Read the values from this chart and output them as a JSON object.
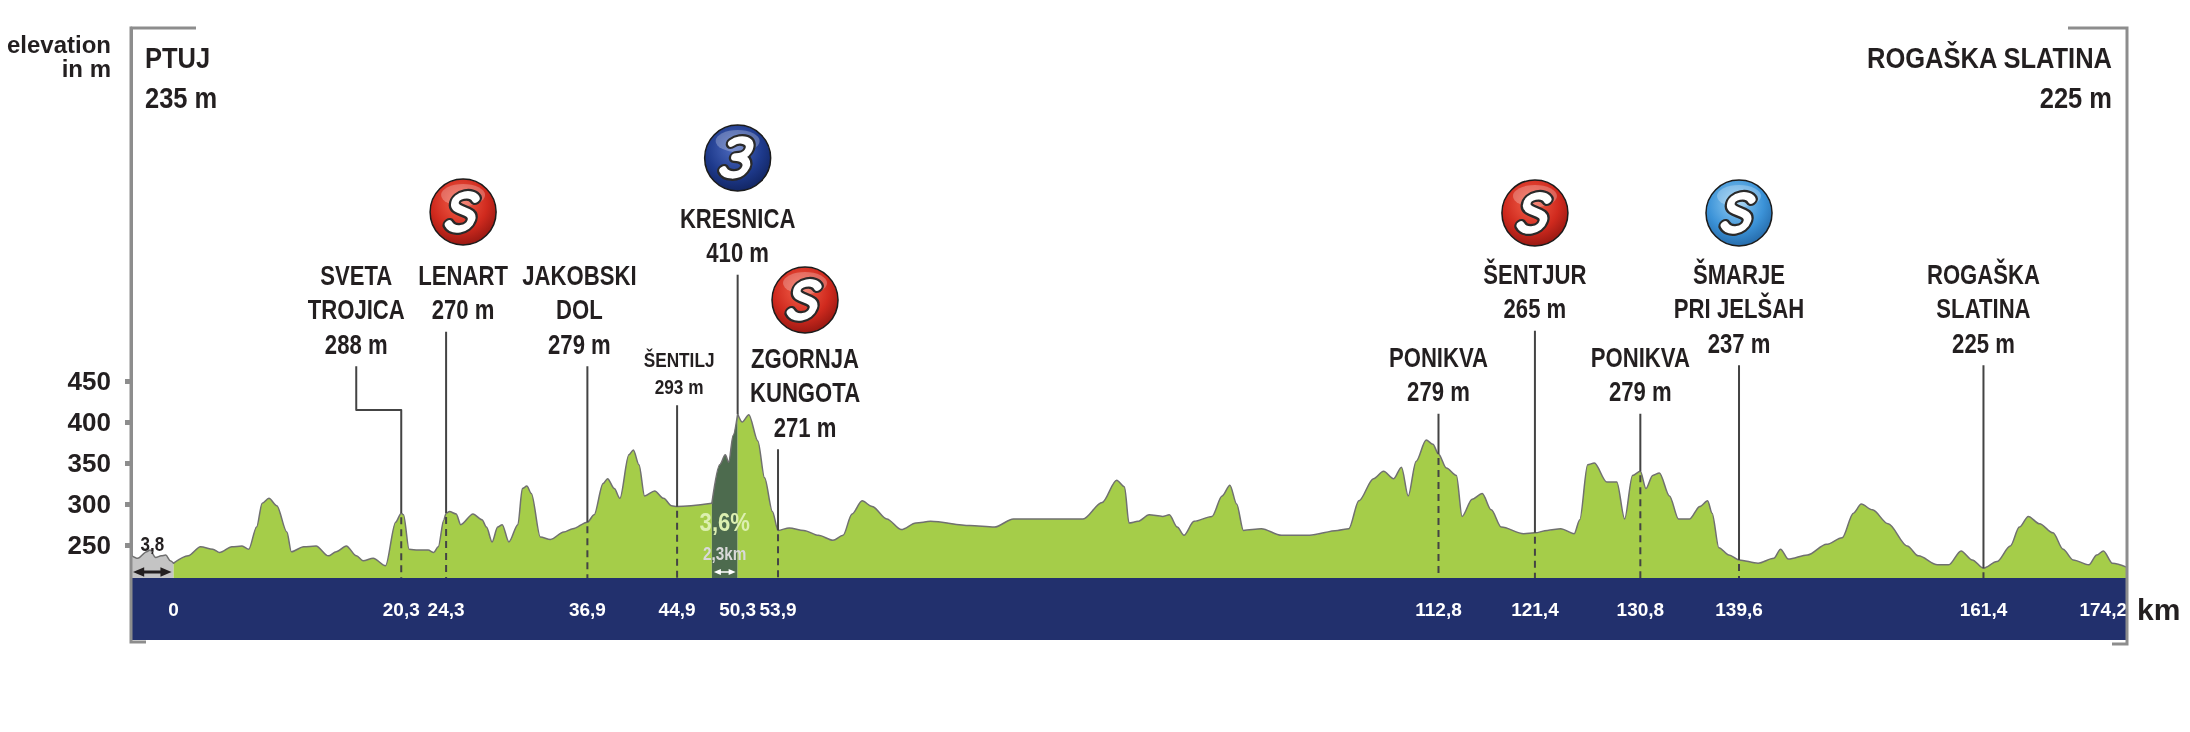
{
  "chart_data": {
    "type": "area",
    "xlabel": "km",
    "ylabel": "elevation\nin m",
    "xlim": [
      -3.8,
      174.2
    ],
    "ylim": [
      210,
      880
    ],
    "xticks": [
      0,
      {
        "value": 20.3,
        "label": "20,3"
      },
      {
        "value": 24.3,
        "label": "24,3"
      },
      {
        "value": 36.9,
        "label": "36,9"
      },
      {
        "value": 44.9,
        "label": "44,9"
      },
      {
        "value": 50.3,
        "label": "50,3"
      },
      {
        "value": 53.9,
        "label": "53,9"
      },
      {
        "value": 112.8,
        "label": "112,8"
      },
      {
        "value": 121.4,
        "label": "121,4"
      },
      {
        "value": 130.8,
        "label": "130,8"
      },
      {
        "value": 139.6,
        "label": "139,6"
      },
      {
        "value": 161.4,
        "label": "161,4"
      },
      {
        "value": 174.2,
        "label": "174,2"
      }
    ],
    "yticks": [
      250,
      300,
      350,
      400,
      450
    ],
    "series": [
      {
        "color": "#c4c4c4",
        "x": [
          -3.8,
          -3.2,
          -2.4,
          -2.1,
          -1.6,
          -1.1,
          -0.7,
          -0.3,
          0
        ],
        "values": [
          238,
          234,
          242,
          244,
          235,
          237,
          238,
          231,
          228
        ]
      },
      {
        "color": "#a5cd49",
        "x": [
          0,
          1.3,
          2.4,
          3.5,
          4.1,
          5.2,
          6.1,
          6.7,
          7.4,
          7.9,
          8.5,
          9.2,
          10.1,
          10.5,
          11.6,
          12.7,
          13.8,
          14.5,
          15.4,
          16.3,
          16.9,
          17.8,
          18.9,
          19.8,
          20.3,
          20.5,
          21.0,
          21.8,
          22.7,
          23.2,
          23.6,
          24.1,
          24.3,
          24.6,
          25.2,
          25.6,
          26.7,
          27.5,
          27.9,
          28.4,
          28.9,
          29.3,
          29.9,
          30.7,
          31.1,
          31.5,
          31.9,
          32.7,
          33.6,
          34.8,
          35.6,
          36.9,
          37.5,
          38.3,
          38.7,
          39.3,
          39.8,
          40.6,
          41.0,
          41.5,
          42.0,
          42.9,
          43.7,
          44.4,
          44.9,
          48.0
        ],
        "values": [
          228,
          237,
          248,
          245,
          241,
          248,
          249,
          245,
          272,
          301,
          307,
          298,
          266,
          242,
          248,
          249,
          237,
          242,
          249,
          237,
          231,
          234,
          225,
          278,
          289,
          287,
          245,
          244,
          244,
          241,
          248,
          281,
          289,
          291,
          288,
          275,
          288,
          281,
          272,
          254,
          272,
          275,
          254,
          275,
          319,
          322,
          313,
          260,
          257,
          266,
          270,
          278,
          287,
          325,
          331,
          319,
          307,
          360,
          366,
          348,
          310,
          316,
          307,
          298,
          297,
          301
        ]
      },
      {
        "color": "#4d6b4e",
        "x": [
          48.0,
          48.7,
          49.2,
          49.5,
          49.9,
          50.3
        ],
        "values": [
          301,
          348,
          360,
          351,
          384,
          410
        ]
      },
      {
        "color": "#a5cd49",
        "x": [
          50.3,
          50.7,
          51.3,
          52.1,
          52.7,
          53.4,
          53.9,
          54.9,
          56.2,
          57.5,
          58.8,
          59.7,
          60.5,
          61.4,
          62.3,
          63.6,
          64.9,
          66.2,
          67.5,
          71.0,
          73.2,
          74.9,
          81.1,
          82.8,
          84.1,
          84.8,
          85.2,
          86.0,
          87.0,
          88.2,
          88.8,
          89.5,
          90.1,
          91.0,
          92.6,
          93.5,
          94.2,
          94.8,
          95.4,
          97.0,
          98.8,
          101.3,
          103.8,
          104.8,
          105.7,
          107.0,
          107.9,
          108.8,
          109.5,
          110.1,
          110.8,
          111.7,
          112.3,
          112.8,
          113.5,
          114.4,
          114.9,
          115.8,
          116.7,
          117.5,
          118.4,
          120.4,
          121.4,
          122.5,
          123.7,
          124.9,
          125.4,
          126.1,
          126.7,
          127.8,
          128.7,
          129.4,
          130.1,
          130.8,
          131.3,
          131.9,
          132.5,
          133.4,
          134.2,
          135.2,
          136.1,
          136.8,
          137.2,
          137.8,
          138.7,
          139.6,
          141.3,
          142.7,
          143.3,
          144.0,
          145.7,
          147.4,
          148.8,
          149.8,
          150.5,
          151.5,
          152.9,
          154.6,
          155.6,
          157.3,
          158.3,
          159.4,
          160.4,
          161.4,
          162.6,
          163.8,
          164.6,
          165.4,
          166.4,
          167.6,
          168.5,
          169.4,
          170.8,
          171.5,
          172.1,
          172.9,
          174.2
        ],
        "values": [
          410,
          400,
          409,
          377,
          332,
          291,
          268,
          271,
          268,
          262,
          256,
          262,
          288,
          304,
          297,
          282,
          269,
          277,
          279,
          274,
          272,
          282,
          282,
          302,
          329,
          321,
          277,
          279,
          287,
          285,
          287,
          272,
          262,
          279,
          285,
          310,
          323,
          300,
          268,
          270,
          262,
          262,
          268,
          270,
          304,
          331,
          340,
          331,
          345,
          310,
          352,
          378,
          373,
          361,
          344,
          335,
          285,
          306,
          313,
          293,
          272,
          264,
          265,
          268,
          270,
          264,
          281,
          348,
          350,
          327,
          327,
          282,
          335,
          340,
          319,
          335,
          338,
          310,
          282,
          282,
          297,
          304,
          289,
          247,
          238,
          232,
          228,
          234,
          245,
          233,
          238,
          251,
          259,
          289,
          300,
          293,
          276,
          249,
          237,
          226,
          226,
          243,
          232,
          222,
          230,
          249,
          272,
          285,
          276,
          265,
          245,
          232,
          226,
          238,
          243,
          228,
          223
        ]
      }
    ],
    "annotations": [
      "PTUJ\n235 m",
      "3,8",
      {
        "text": "SVETA\nTROJICA\n288 m",
        "x": 20.3,
        "y": 210
      },
      {
        "text": "LENART\n270 m",
        "x": 24.3,
        "y": 210
      },
      {
        "text": "JAKOBSKI\nDOL\n279 m",
        "x": 36.9,
        "y": 210
      },
      {
        "text": "ŠENTILJ\n293 m",
        "x": 44.9,
        "y": 210
      },
      "3,6%",
      "2,3km",
      {
        "text": "KRESNICA\n410 m",
        "x": 50.3,
        "y": 410
      },
      {
        "text": "ZGORNJA\nKUNGOTA\n271 m",
        "x": 53.9,
        "y": 210
      },
      {
        "text": "PONIKVA\n279 m",
        "x": 112.8,
        "y": 210
      },
      {
        "text": "ŠENTJUR\n265 m",
        "x": 121.4,
        "y": 210
      },
      {
        "text": "PONIKVA\n279 m",
        "x": 130.8,
        "y": 210
      },
      {
        "text": "ŠMARJE\nPRI JELŠAH\n237 m",
        "x": 139.6,
        "y": 210
      },
      {
        "text": "ROGAŠKA\nSLATINA\n225 m",
        "x": 161.4,
        "y": 210
      },
      "ROGAŠKA SLATINA\n225 m"
    ]
  }
}
